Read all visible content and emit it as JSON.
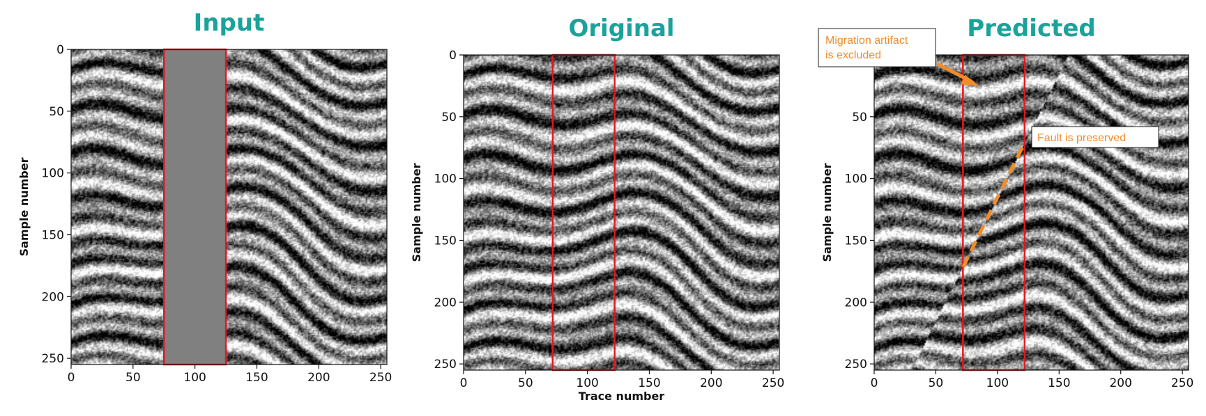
{
  "chart_data": [
    {
      "type": "heatmap",
      "title": "Input",
      "ylabel": "Sample number",
      "xlabel": "",
      "xlim": [
        0,
        255
      ],
      "ylim": [
        255,
        0
      ],
      "x_ticks": [
        0,
        50,
        100,
        150,
        200,
        250
      ],
      "y_ticks": [
        0,
        50,
        100,
        150,
        200,
        250
      ],
      "colormap": "gray",
      "highlight_box": {
        "x": [
          75,
          125
        ],
        "y": [
          0,
          255
        ],
        "color": "#e0191e"
      },
      "masked_region": {
        "x": [
          75,
          125
        ],
        "y": [
          0,
          255
        ],
        "fill": "#808080"
      }
    },
    {
      "type": "heatmap",
      "title": "Original",
      "ylabel": "Sample number",
      "xlabel": "Trace number",
      "xlim": [
        0,
        255
      ],
      "ylim": [
        255,
        0
      ],
      "x_ticks": [
        0,
        50,
        100,
        150,
        200,
        250
      ],
      "y_ticks": [
        0,
        50,
        100,
        150,
        200,
        250
      ],
      "colormap": "gray",
      "highlight_box": {
        "x": [
          72,
          122
        ],
        "y": [
          0,
          255
        ],
        "color": "#e0191e"
      }
    },
    {
      "type": "heatmap",
      "title": "Predicted",
      "ylabel": "Sample number",
      "xlabel": "",
      "xlim": [
        0,
        255
      ],
      "ylim": [
        255,
        0
      ],
      "x_ticks": [
        0,
        50,
        100,
        150,
        200,
        250
      ],
      "y_ticks": [
        50,
        100,
        150,
        200,
        250
      ],
      "colormap": "gray",
      "highlight_box": {
        "x": [
          72,
          122
        ],
        "y": [
          0,
          255
        ],
        "color": "#e0191e"
      },
      "annotations": [
        {
          "text": "Migration   artifact\nis excluded",
          "arrow_to": {
            "x": 85,
            "y": 25
          }
        },
        {
          "text": "Fault is preserved",
          "dashed_line": [
            [
              120,
              75
            ],
            [
              72,
              172
            ]
          ]
        }
      ]
    }
  ],
  "colors": {
    "title": "#1aa39a",
    "box": "#e0191e",
    "annotation": "#f28c28",
    "mask": "#808080"
  }
}
